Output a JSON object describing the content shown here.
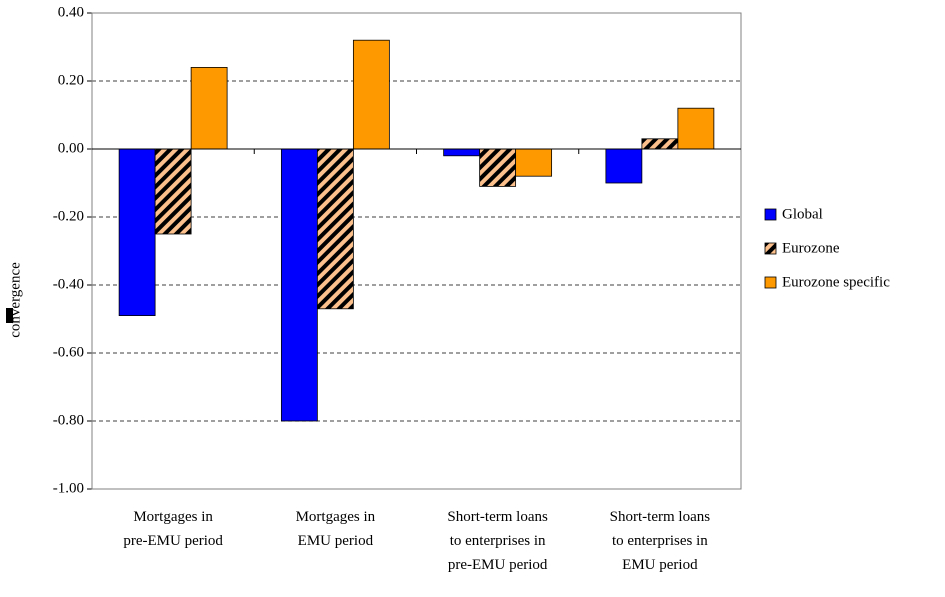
{
  "chart_data": {
    "type": "bar",
    "y_label": "convergence",
    "categories": [
      "Mortgages in\npre-EMU period",
      "Mortgages in\nEMU period",
      "Short-term loans\nto enterprises in\npre-EMU period",
      "Short-term loans\nto enterprises in\nEMU period"
    ],
    "series": [
      {
        "name": "Global",
        "color": "#0000ff",
        "values": [
          -0.49,
          -0.8,
          -0.02,
          -0.1
        ]
      },
      {
        "name": "Eurozone",
        "color": "#fbc08c",
        "hatch": true,
        "values": [
          -0.25,
          -0.47,
          -0.11,
          0.03
        ]
      },
      {
        "name": "Eurozone specific",
        "color": "#ff9900",
        "values": [
          0.24,
          0.32,
          -0.08,
          0.12
        ]
      }
    ],
    "ylim": [
      -1,
      0.4
    ],
    "yticks": [
      {
        "value": -1,
        "label": "-1.00"
      },
      {
        "value": -0.8,
        "label": "-0.80"
      },
      {
        "value": -0.6,
        "label": "-0.60"
      },
      {
        "value": -0.4,
        "label": "-0.40"
      },
      {
        "value": -0.2,
        "label": "-0.20"
      },
      {
        "value": 0,
        "label": "0.00"
      },
      {
        "value": 0.2,
        "label": "0.20"
      },
      {
        "value": 0.4,
        "label": "0.40"
      }
    ],
    "grid": true
  }
}
